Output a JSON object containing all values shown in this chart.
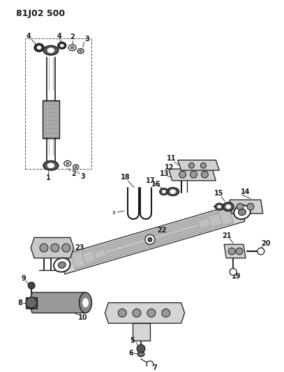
{
  "title": "81J02 500",
  "bg_color": "#ffffff",
  "line_color": "#1a1a1a",
  "fig_width": 4.07,
  "fig_height": 5.33,
  "dpi": 100,
  "xlim": [
    0,
    407
  ],
  "ylim": [
    0,
    533
  ]
}
